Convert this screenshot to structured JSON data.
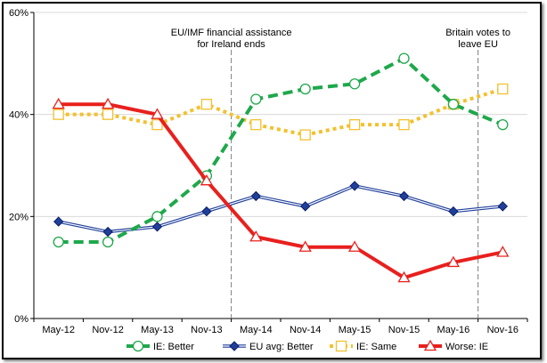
{
  "chart_data": {
    "type": "line",
    "categories": [
      "May-12",
      "Nov-12",
      "May-13",
      "Nov-13",
      "May-14",
      "Nov-14",
      "May-15",
      "Nov-15",
      "May-16",
      "Nov-16"
    ],
    "ylim": [
      0,
      60
    ],
    "yticks": [
      0,
      20,
      40,
      60
    ],
    "ytick_labels": [
      "0%",
      "20%",
      "40%",
      "60%"
    ],
    "grid": "horizontal",
    "legend_position": "bottom",
    "series": [
      {
        "name": "IE: Better",
        "color": "#1ea84b",
        "dash": "dashed",
        "marker": "circle-open",
        "values": [
          15,
          15,
          20,
          28,
          43,
          45,
          46,
          51,
          42,
          38
        ]
      },
      {
        "name": "EU avg: Better",
        "color": "#1f3f9a",
        "dash": "double",
        "marker": "diamond-filled",
        "values": [
          19,
          17,
          18,
          21,
          24,
          22,
          26,
          24,
          21,
          22
        ]
      },
      {
        "name": "IE: Same",
        "color": "#f2c12e",
        "dash": "dotted",
        "marker": "square-open",
        "values": [
          40,
          40,
          38,
          42,
          38,
          36,
          38,
          38,
          42,
          45
        ]
      },
      {
        "name": "Worse: IE",
        "color": "#e8201d",
        "dash": "solid",
        "marker": "triangle-open",
        "values": [
          42,
          42,
          40,
          27,
          16,
          14,
          14,
          8,
          11,
          13
        ]
      }
    ],
    "annotations": [
      {
        "between": [
          "Nov-13",
          "May-14"
        ],
        "lines": [
          "EU/IMF financial assistance",
          "for Ireland ends"
        ]
      },
      {
        "between": [
          "May-16",
          "Nov-16"
        ],
        "lines": [
          "Britain votes to",
          "leave EU"
        ]
      }
    ]
  }
}
